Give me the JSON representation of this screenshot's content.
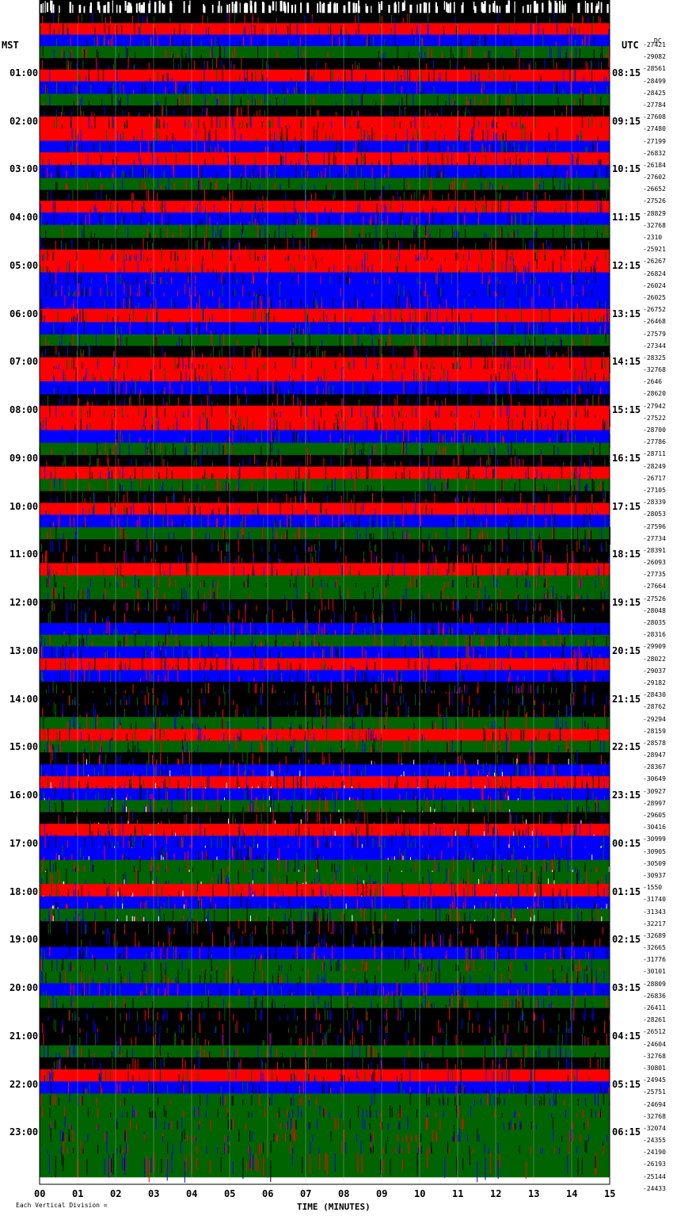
{
  "chart_data": {
    "type": "heatmap",
    "left_axis_label": "MST",
    "right_axis_label": "UTC",
    "offset_header": "DC",
    "xlabel": "TIME (MINUTES)",
    "x_tick_labels": [
      "00",
      "01",
      "02",
      "03",
      "04",
      "05",
      "06",
      "07",
      "08",
      "09",
      "10",
      "11",
      "12",
      "13",
      "14",
      "15"
    ],
    "xlim": [
      0,
      15
    ],
    "left_hour_labels": [
      "01:00",
      "02:00",
      "03:00",
      "04:00",
      "05:00",
      "06:00",
      "07:00",
      "08:00",
      "09:00",
      "10:00",
      "11:00",
      "12:00",
      "13:00",
      "14:00",
      "15:00",
      "16:00",
      "17:00",
      "18:00",
      "19:00",
      "20:00",
      "21:00",
      "22:00",
      "23:00"
    ],
    "right_hour_labels": [
      "08:15",
      "09:15",
      "10:15",
      "11:15",
      "12:15",
      "13:15",
      "14:15",
      "15:15",
      "16:15",
      "17:15",
      "18:15",
      "19:15",
      "20:15",
      "21:15",
      "22:15",
      "23:15",
      "00:15",
      "01:15",
      "02:15",
      "03:15",
      "04:15",
      "05:15",
      "06:15"
    ],
    "trace_offsets": [
      "-27421",
      "-29082",
      "-28561",
      "-28499",
      "-28425",
      "-27784",
      "-27608",
      "-27480",
      "-27199",
      "-26832",
      "-26184",
      "-27602",
      "-26652",
      "-27526",
      "-28829",
      "-32768",
      "-2310",
      "-25921",
      "-26267",
      "-26824",
      "-26024",
      "-26025",
      "-26752",
      "-26468",
      "-27579",
      "-27344",
      "-28325",
      "-32768",
      "-2646",
      "-28620",
      "-27942",
      "-27522",
      "-28700",
      "-27786",
      "-28711",
      "-28249",
      "-26717",
      "-27105",
      "-28339",
      "-28053",
      "-27596",
      "-27734",
      "-28391",
      "-26093",
      "-27735",
      "-27664",
      "-27526",
      "-28048",
      "-28035",
      "-28316",
      "-29909",
      "-28022",
      "-29037",
      "-29182",
      "-28430",
      "-28762",
      "-29294",
      "-28159",
      "-28578",
      "-28947",
      "-28367",
      "-30649",
      "-30927",
      "-28997",
      "-29605",
      "-30416",
      "-30999",
      "-30905",
      "-30509",
      "-30937",
      "-1550",
      "-31740",
      "-31343",
      "-32217",
      "-32689",
      "-32665",
      "-31776",
      "-30101",
      "-28809",
      "-26836",
      "-26411",
      "-28261",
      "-26512",
      "-24604",
      "-32768",
      "-30801",
      "-24945",
      "-25751",
      "-24694",
      "-32768",
      "-32074",
      "-24355",
      "-24190",
      "-26193",
      "-25144",
      "-24433"
    ],
    "trace_colors": [
      "#000000",
      "#ff0000",
      "#0000ff",
      "#006400"
    ],
    "trace_color_sequence": [
      "k",
      "r",
      "b",
      "g",
      "k",
      "r",
      "b",
      "g",
      "k",
      "r",
      "r",
      "b",
      "r",
      "b",
      "g",
      "k",
      "r",
      "b",
      "g",
      "k",
      "r",
      "r",
      "b",
      "b",
      "b",
      "r",
      "b",
      "g",
      "k",
      "r",
      "r",
      "b",
      "k",
      "r",
      "r",
      "b",
      "g",
      "k",
      "r",
      "g",
      "k",
      "r",
      "b",
      "g",
      "k",
      "k",
      "r",
      "g",
      "g",
      "k",
      "k",
      "b",
      "g",
      "b",
      "r",
      "b",
      "k",
      "k",
      "k",
      "g",
      "r",
      "g",
      "k",
      "b",
      "r",
      "b",
      "g",
      "k",
      "r",
      "b",
      "b",
      "g",
      "g",
      "r",
      "b",
      "g",
      "k",
      "k",
      "b",
      "g",
      "g",
      "b",
      "g",
      "k",
      "k",
      "k",
      "g",
      "k",
      "r",
      "b",
      "g",
      "g",
      "g",
      "g",
      "g",
      "g"
    ],
    "trace_density": [
      0.3,
      0.45,
      0.5,
      0.55,
      0.55,
      0.6,
      0.62,
      0.58,
      0.62,
      0.7,
      0.72,
      0.68,
      0.72,
      0.68,
      0.6,
      0.6,
      0.7,
      0.72,
      0.7,
      0.62,
      0.65,
      0.72,
      0.75,
      0.78,
      0.75,
      0.72,
      0.62,
      0.6,
      0.65,
      0.7,
      0.72,
      0.7,
      0.62,
      0.68,
      0.7,
      0.65,
      0.6,
      0.58,
      0.62,
      0.6,
      0.58,
      0.6,
      0.62,
      0.58,
      0.58,
      0.55,
      0.6,
      0.58,
      0.58,
      0.6,
      0.62,
      0.62,
      0.65,
      0.68,
      0.7,
      0.72,
      0.75,
      0.78,
      0.8,
      0.82,
      0.82,
      0.85,
      0.88,
      0.88,
      0.9,
      0.9,
      0.92,
      0.92,
      0.95,
      0.95,
      0.95,
      0.95,
      0.95,
      0.95,
      0.92,
      0.9,
      0.85,
      0.78,
      0.72,
      0.7,
      0.72,
      0.7,
      0.68,
      0.65,
      0.6,
      0.58,
      0.55,
      0.55,
      0.55,
      0.55,
      0.55,
      0.55,
      0.55,
      0.55,
      0.55,
      0.55
    ],
    "top_header_text": "",
    "footer_left": "Each Vertical Division = ",
    "grid": true
  }
}
